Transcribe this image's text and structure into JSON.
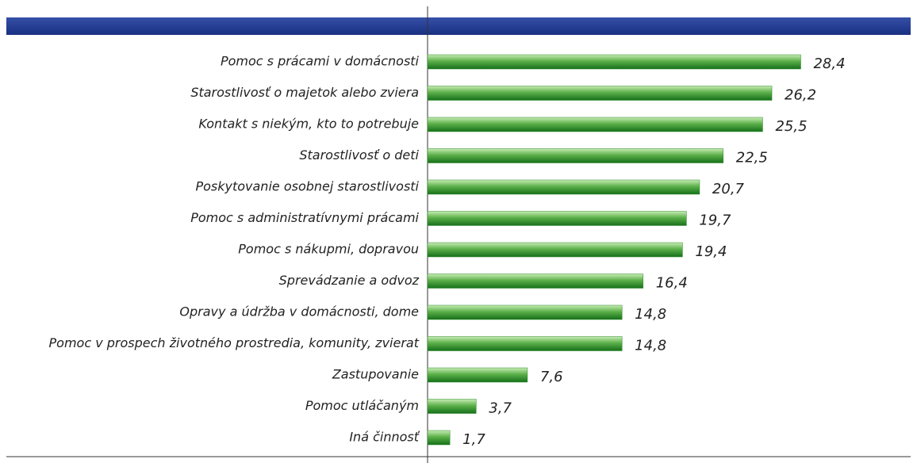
{
  "chart_data": {
    "type": "hbar",
    "categories": [
      "Pomoc s prácami v domácnosti",
      "Starostlivosť o majetok alebo zviera",
      "Kontakt s niekým, kto to potrebuje",
      "Starostlivosť o deti",
      "Poskytovanie osobnej starostlivosti",
      "Pomoc s administratívnymi prácami",
      "Pomoc s nákupmi, dopravou",
      "Sprevádzanie a odvoz",
      "Opravy a údržba v domácnosti, dome",
      "Pomoc v prospech životného prostredia, komunity, zvierat",
      "Zastupovanie",
      "Pomoc utláčaným",
      "Iná činnosť"
    ],
    "values": [
      28.4,
      26.2,
      25.5,
      22.5,
      20.7,
      19.7,
      19.4,
      16.4,
      14.8,
      14.8,
      7.6,
      3.7,
      1.7
    ],
    "value_labels": [
      "28,4",
      "26,2",
      "25,5",
      "22,5",
      "20,7",
      "19,7",
      "19,4",
      "16,4",
      "14,8",
      "14,8",
      "7,6",
      "3,7",
      "1,7"
    ],
    "color": "#2a8a2a",
    "xlim": [
      0,
      30
    ]
  }
}
